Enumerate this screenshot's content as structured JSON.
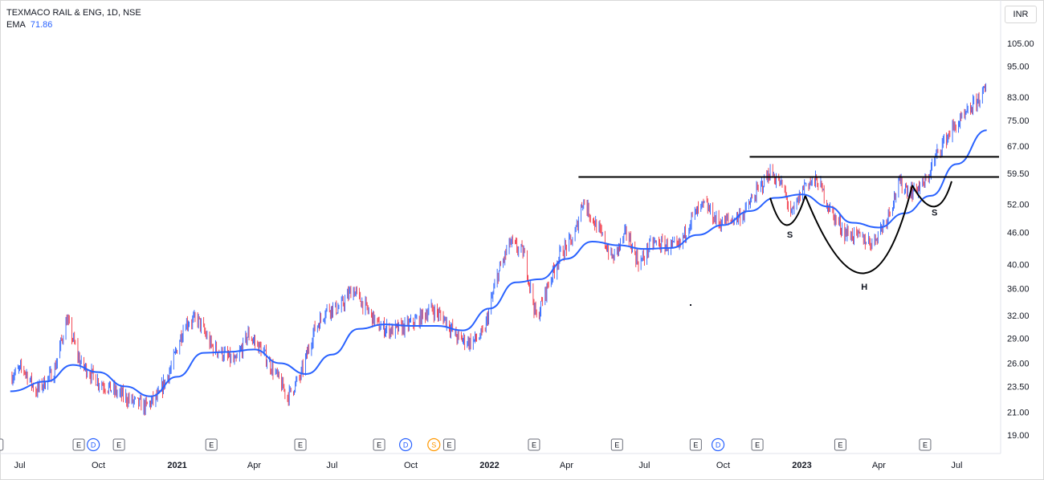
{
  "header": {
    "symbol": "TEXMACO RAIL & ENG, 1D, NSE",
    "ema_label": "EMA",
    "ema_value": "71.86",
    "currency": "INR"
  },
  "chart_data": {
    "type": "candlestick",
    "scale": "log",
    "y_ticks": [
      "105.00",
      "95.00",
      "83.00",
      "75.00",
      "67.00",
      "59.50",
      "52.00",
      "46.00",
      "40.00",
      "36.00",
      "32.00",
      "29.00",
      "26.00",
      "23.50",
      "21.00",
      "19.00"
    ],
    "x_ticks": [
      {
        "label": "Jul",
        "year": false
      },
      {
        "label": "Oct",
        "year": false
      },
      {
        "label": "2021",
        "year": true
      },
      {
        "label": "Apr",
        "year": false
      },
      {
        "label": "Jul",
        "year": false
      },
      {
        "label": "Oct",
        "year": false
      },
      {
        "label": "2022",
        "year": true
      },
      {
        "label": "Apr",
        "year": false
      },
      {
        "label": "Jul",
        "year": false
      },
      {
        "label": "Oct",
        "year": false
      },
      {
        "label": "2023",
        "year": true
      },
      {
        "label": "Apr",
        "year": false
      },
      {
        "label": "Jul",
        "year": false
      }
    ],
    "price_path": [
      [
        "2020-06-20",
        24.5
      ],
      [
        "2020-07-05",
        25.5
      ],
      [
        "2020-07-20",
        23.0
      ],
      [
        "2020-08-10",
        25.0
      ],
      [
        "2020-08-25",
        31.5
      ],
      [
        "2020-09-10",
        26.0
      ],
      [
        "2020-10-01",
        24.0
      ],
      [
        "2020-10-20",
        23.0
      ],
      [
        "2020-11-10",
        22.0
      ],
      [
        "2020-11-25",
        21.5
      ],
      [
        "2020-12-10",
        22.5
      ],
      [
        "2020-12-25",
        25.5
      ],
      [
        "2021-01-10",
        31.0
      ],
      [
        "2021-01-25",
        31.5
      ],
      [
        "2021-02-10",
        28.0
      ],
      [
        "2021-02-25",
        27.0
      ],
      [
        "2021-03-10",
        26.0
      ],
      [
        "2021-03-25",
        29.5
      ],
      [
        "2021-04-10",
        27.5
      ],
      [
        "2021-04-25",
        25.0
      ],
      [
        "2021-05-10",
        22.5
      ],
      [
        "2021-05-25",
        24.5
      ],
      [
        "2021-06-10",
        30.0
      ],
      [
        "2021-06-25",
        33.0
      ],
      [
        "2021-07-10",
        33.0
      ],
      [
        "2021-07-25",
        36.0
      ],
      [
        "2021-08-10",
        33.0
      ],
      [
        "2021-08-25",
        30.5
      ],
      [
        "2021-09-10",
        30.0
      ],
      [
        "2021-09-25",
        30.5
      ],
      [
        "2021-10-10",
        31.5
      ],
      [
        "2021-10-25",
        33.0
      ],
      [
        "2021-11-10",
        31.5
      ],
      [
        "2021-11-25",
        29.0
      ],
      [
        "2021-12-10",
        28.5
      ],
      [
        "2021-12-25",
        29.5
      ],
      [
        "2022-01-10",
        38.0
      ],
      [
        "2022-01-25",
        44.0
      ],
      [
        "2022-02-10",
        42.0
      ],
      [
        "2022-02-25",
        31.5
      ],
      [
        "2022-03-10",
        36.5
      ],
      [
        "2022-03-25",
        42.0
      ],
      [
        "2022-04-10",
        45.0
      ],
      [
        "2022-04-20",
        53.0
      ],
      [
        "2022-05-10",
        46.0
      ],
      [
        "2022-05-25",
        41.0
      ],
      [
        "2022-06-10",
        46.0
      ],
      [
        "2022-06-25",
        40.0
      ],
      [
        "2022-07-10",
        44.0
      ],
      [
        "2022-07-25",
        43.5
      ],
      [
        "2022-08-10",
        43.0
      ],
      [
        "2022-08-25",
        49.0
      ],
      [
        "2022-09-10",
        52.0
      ],
      [
        "2022-09-25",
        48.0
      ],
      [
        "2022-10-10",
        48.5
      ],
      [
        "2022-10-25",
        50.0
      ],
      [
        "2022-11-10",
        55.0
      ],
      [
        "2022-11-25",
        60.0
      ],
      [
        "2022-12-10",
        56.0
      ],
      [
        "2022-12-20",
        49.5
      ],
      [
        "2023-01-05",
        57.0
      ],
      [
        "2023-01-20",
        57.5
      ],
      [
        "2023-02-05",
        50.0
      ],
      [
        "2023-02-20",
        46.0
      ],
      [
        "2023-03-10",
        45.0
      ],
      [
        "2023-03-25",
        44.0
      ],
      [
        "2023-04-10",
        49.0
      ],
      [
        "2023-04-25",
        57.0
      ],
      [
        "2023-05-10",
        55.0
      ],
      [
        "2023-05-25",
        57.0
      ],
      [
        "2023-06-10",
        66.0
      ],
      [
        "2023-06-25",
        72.0
      ],
      [
        "2023-07-10",
        76.0
      ],
      [
        "2023-07-25",
        82.0
      ],
      [
        "2023-08-05",
        86.0
      ]
    ],
    "ema_path": [
      [
        "2020-06-20",
        23.0
      ],
      [
        "2020-08-01",
        24.0
      ],
      [
        "2020-09-01",
        25.8
      ],
      [
        "2020-10-01",
        25.0
      ],
      [
        "2020-11-01",
        23.5
      ],
      [
        "2020-12-01",
        22.5
      ],
      [
        "2021-01-01",
        24.5
      ],
      [
        "2021-02-01",
        27.2
      ],
      [
        "2021-03-01",
        27.3
      ],
      [
        "2021-04-01",
        27.6
      ],
      [
        "2021-05-01",
        26.0
      ],
      [
        "2021-06-01",
        24.8
      ],
      [
        "2021-07-01",
        27.0
      ],
      [
        "2021-08-01",
        30.2
      ],
      [
        "2021-09-01",
        30.8
      ],
      [
        "2021-10-01",
        30.6
      ],
      [
        "2021-11-01",
        30.6
      ],
      [
        "2021-12-01",
        30.0
      ],
      [
        "2022-01-01",
        33.0
      ],
      [
        "2022-02-01",
        37.0
      ],
      [
        "2022-03-01",
        37.5
      ],
      [
        "2022-04-01",
        41.0
      ],
      [
        "2022-05-01",
        44.2
      ],
      [
        "2022-06-01",
        43.5
      ],
      [
        "2022-07-01",
        42.8
      ],
      [
        "2022-08-01",
        43.0
      ],
      [
        "2022-09-01",
        45.5
      ],
      [
        "2022-10-01",
        47.5
      ],
      [
        "2022-11-01",
        50.5
      ],
      [
        "2022-12-01",
        53.5
      ],
      [
        "2023-01-01",
        54.3
      ],
      [
        "2023-02-01",
        51.5
      ],
      [
        "2023-03-01",
        48.0
      ],
      [
        "2023-04-01",
        47.0
      ],
      [
        "2023-05-01",
        50.0
      ],
      [
        "2023-06-01",
        54.0
      ],
      [
        "2023-07-01",
        62.0
      ],
      [
        "2023-08-05",
        71.86
      ]
    ],
    "resistance_lines": [
      {
        "from": "2022-04-15",
        "to": "2023-08-25",
        "value": 58.6
      },
      {
        "from": "2022-11-01",
        "to": "2023-08-25",
        "value": 64.0
      }
    ],
    "pattern_curves": [
      [
        [
          "2022-11-25",
          53.5
        ],
        [
          "2022-12-15",
          47.5
        ],
        [
          "2023-01-05",
          54.0
        ]
      ],
      [
        [
          "2023-01-05",
          54.0
        ],
        [
          "2023-03-15",
          38.5
        ],
        [
          "2023-05-10",
          56.5
        ]
      ],
      [
        [
          "2023-05-10",
          56.5
        ],
        [
          "2023-06-05",
          51.5
        ],
        [
          "2023-06-25",
          57.5
        ]
      ]
    ],
    "annotations": [
      {
        "text": "S",
        "date": "2022-12-18",
        "value": 45.0
      },
      {
        "text": "H",
        "date": "2023-03-15",
        "value": 35.8
      },
      {
        "text": "S",
        "date": "2023-06-05",
        "value": 49.5
      }
    ],
    "events": [
      {
        "type": "E",
        "date": "2020-06-05"
      },
      {
        "type": "E",
        "date": "2020-09-08"
      },
      {
        "type": "D",
        "date": "2020-09-25"
      },
      {
        "type": "E",
        "date": "2020-10-25"
      },
      {
        "type": "E",
        "date": "2021-02-10"
      },
      {
        "type": "E",
        "date": "2021-05-25"
      },
      {
        "type": "E",
        "date": "2021-08-25"
      },
      {
        "type": "D",
        "date": "2021-09-25"
      },
      {
        "type": "S",
        "date": "2021-10-28"
      },
      {
        "type": "E",
        "date": "2021-11-15"
      },
      {
        "type": "E",
        "date": "2022-02-22"
      },
      {
        "type": "E",
        "date": "2022-05-30"
      },
      {
        "type": "E",
        "date": "2022-08-30"
      },
      {
        "type": "D",
        "date": "2022-09-25"
      },
      {
        "type": "E",
        "date": "2022-11-10"
      },
      {
        "type": "E",
        "date": "2023-02-15"
      },
      {
        "type": "E",
        "date": "2023-05-25"
      }
    ],
    "colors": {
      "up": "#2962ff",
      "down": "#f23645",
      "ema": "#2962ff",
      "line": "#000000",
      "dividend": "#2962ff",
      "split": "#ff9800",
      "earnings": "#787b86"
    }
  }
}
